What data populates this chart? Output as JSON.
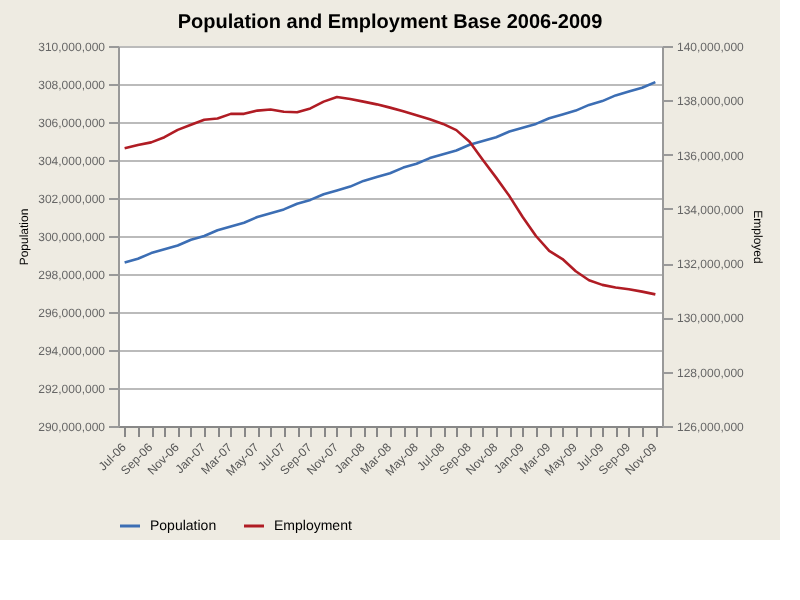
{
  "chart_data": {
    "type": "line",
    "title": "Population and Employment Base 2006-2009",
    "ylabel": "Population",
    "y2label": "Employed",
    "categories": [
      "Jul-06",
      null,
      "Sep-06",
      null,
      "Nov-06",
      null,
      "Jan-07",
      null,
      "Mar-07",
      null,
      "May-07",
      null,
      "Jul-07",
      null,
      "Sep-07",
      null,
      "Nov-07",
      null,
      "Jan-08",
      null,
      "Mar-08",
      null,
      "May-08",
      null,
      "Jul-08",
      null,
      "Sep-08",
      null,
      "Nov-08",
      null,
      "Jan-09",
      null,
      "Mar-09",
      null,
      "May-09",
      null,
      "Jul-09",
      null,
      "Sep-09",
      null,
      "Nov-09"
    ],
    "series": [
      {
        "name": "Population",
        "color": "#3c6eb4",
        "values": [
          298600000,
          298800000,
          299100000,
          299300000,
          299500000,
          299800000,
          300000000,
          300300000,
          300500000,
          300700000,
          301000000,
          301200000,
          301400000,
          301700000,
          301900000,
          302200000,
          302400000,
          302600000,
          302900000,
          303100000,
          303300000,
          303600000,
          303800000,
          304100000,
          304300000,
          304500000,
          304800000,
          305000000,
          305200000,
          305500000,
          305700000,
          305900000,
          306200000,
          306400000,
          306600000,
          306900000,
          307100000,
          307400000,
          307600000,
          307800000,
          308100000
        ]
      },
      {
        "name": "Employment",
        "color": "#b01c24",
        "axis": "y2",
        "values": [
          136230000,
          136350000,
          136450000,
          136640000,
          136910000,
          137100000,
          137280000,
          137330000,
          137500000,
          137500000,
          137620000,
          137660000,
          137580000,
          137560000,
          137700000,
          137950000,
          138120000,
          138050000,
          137950000,
          137850000,
          137730000,
          137600000,
          137450000,
          137300000,
          137130000,
          136900000,
          136470000,
          135800000,
          135150000,
          134470000,
          133700000,
          133000000,
          132450000,
          132150000,
          131700000,
          131370000,
          131200000,
          131100000,
          131040000,
          130950000,
          130850000
        ]
      }
    ],
    "ylim": [
      290000000,
      310000000
    ],
    "yticks": [
      {
        "value": 290000000,
        "label": "290,000,000"
      },
      {
        "value": 292000000,
        "label": "292,000,000"
      },
      {
        "value": 294000000,
        "label": "294,000,000"
      },
      {
        "value": 296000000,
        "label": "296,000,000"
      },
      {
        "value": 298000000,
        "label": "298,000,000"
      },
      {
        "value": 300000000,
        "label": "300,000,000"
      },
      {
        "value": 302000000,
        "label": "302,000,000"
      },
      {
        "value": 304000000,
        "label": "304,000,000"
      },
      {
        "value": 306000000,
        "label": "306,000,000"
      },
      {
        "value": 308000000,
        "label": "308,000,000"
      },
      {
        "value": 310000000,
        "label": "310,000,000"
      }
    ],
    "y2lim": [
      126000000,
      140000000
    ],
    "y2ticks": [
      {
        "value": 126000000,
        "label": "126,000,000"
      },
      {
        "value": 128000000,
        "label": "128,000,000"
      },
      {
        "value": 130000000,
        "label": "130,000,000"
      },
      {
        "value": 132000000,
        "label": "132,000,000"
      },
      {
        "value": 134000000,
        "label": "134,000,000"
      },
      {
        "value": 136000000,
        "label": "136,000,000"
      },
      {
        "value": 138000000,
        "label": "138,000,000"
      },
      {
        "value": 140000000,
        "label": "140,000,000"
      }
    ],
    "grid": "y",
    "legend": "bottom",
    "marker": "none",
    "line_style": "solid"
  }
}
